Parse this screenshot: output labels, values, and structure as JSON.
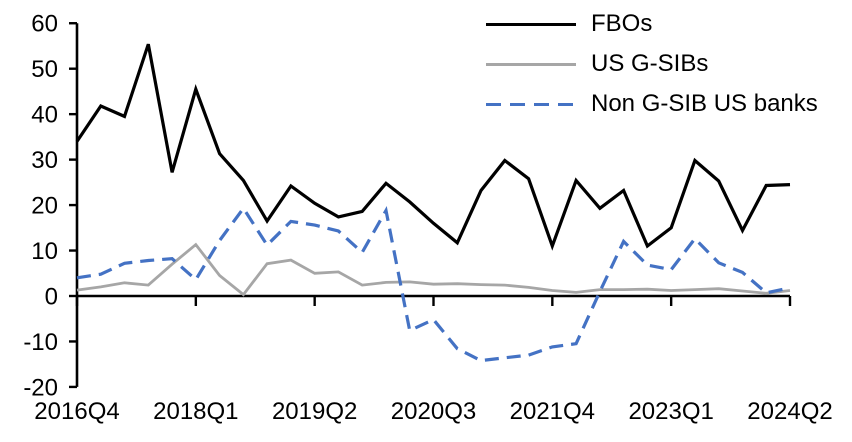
{
  "chart_data": {
    "type": "line",
    "title": "",
    "xlabel": "",
    "ylabel": "",
    "ylim": [
      -20,
      60
    ],
    "y_ticks": [
      60,
      50,
      40,
      30,
      20,
      10,
      0,
      -10,
      -20
    ],
    "x_tick_labels": [
      "2016Q4",
      "2018Q1",
      "2019Q2",
      "2020Q3",
      "2021Q4",
      "2023Q1",
      "2024Q2"
    ],
    "x_tick_every": 5,
    "grid": false,
    "legend_position": "top-right",
    "categories": [
      "2016Q4",
      "2017Q1",
      "2017Q2",
      "2017Q3",
      "2017Q4",
      "2018Q1",
      "2018Q2",
      "2018Q3",
      "2018Q4",
      "2019Q1",
      "2019Q2",
      "2019Q3",
      "2019Q4",
      "2020Q1",
      "2020Q2",
      "2020Q3",
      "2020Q4",
      "2021Q1",
      "2021Q2",
      "2021Q3",
      "2021Q4",
      "2022Q1",
      "2022Q2",
      "2022Q3",
      "2022Q4",
      "2023Q1",
      "2023Q2",
      "2023Q3",
      "2023Q4",
      "2024Q1",
      "2024Q2"
    ],
    "series": [
      {
        "name": "FBOs",
        "color": "#000000",
        "style": "solid",
        "values": [
          34,
          41.8,
          39.5,
          55.4,
          27.2,
          45.5,
          31.3,
          25.4,
          16.5,
          24.2,
          20.4,
          17.4,
          18.6,
          24.8,
          20.7,
          16,
          11.7,
          23.2,
          29.8,
          25.8,
          11,
          25.4,
          19.3,
          23.2,
          11,
          15,
          29.8,
          25.3,
          14.4,
          24.3,
          24.5
        ]
      },
      {
        "name": "US G-SIBs",
        "color": "#a6a6a6",
        "style": "solid",
        "values": [
          1.3,
          2,
          2.9,
          2.4,
          7,
          11.3,
          4.5,
          0.3,
          7.1,
          7.9,
          5,
          5.3,
          2.4,
          3,
          3.1,
          2.6,
          2.7,
          2.5,
          2.4,
          1.9,
          1.2,
          0.8,
          1.4,
          1.4,
          1.5,
          1.2,
          1.4,
          1.6,
          1.1,
          0.6,
          1.2
        ]
      },
      {
        "name": "Non G-SIB US banks",
        "color": "#4472c4",
        "style": "dashed",
        "values": [
          4,
          4.8,
          7.2,
          7.8,
          8.2,
          3.6,
          12.2,
          19.3,
          11.2,
          16.4,
          15.6,
          14.3,
          9.6,
          18.8,
          -7.6,
          -5.2,
          -11.6,
          -14.2,
          -13.6,
          -13,
          -11.2,
          -10.5,
          1,
          12,
          6.8,
          5.8,
          12.6,
          7.3,
          5.2,
          0.7,
          1.8
        ]
      }
    ]
  }
}
